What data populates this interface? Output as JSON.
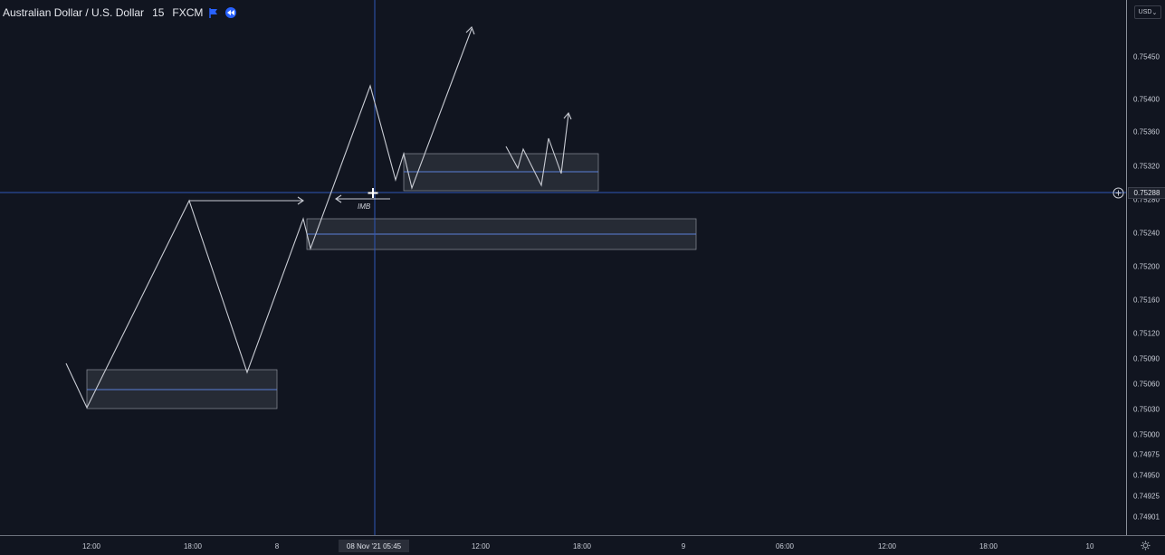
{
  "symbol": {
    "name": "Australian Dollar / U.S. Dollar",
    "timeframe": "15",
    "source": "FXCM",
    "flag_icon": "flag-icon",
    "rewind_icon": "rewind-icon"
  },
  "price_axis": {
    "currency": "USD",
    "labels": [
      "0.75450",
      "0.75400",
      "0.75360",
      "0.75320",
      "0.75280",
      "0.75240",
      "0.75200",
      "0.75160",
      "0.75120",
      "0.75090",
      "0.75060",
      "0.75030",
      "0.75000",
      "0.74975",
      "0.74950",
      "0.74925",
      "0.74901"
    ],
    "current_price": "0.75288"
  },
  "time_axis": {
    "labels": [
      "12:00",
      "18:00",
      "8",
      "12:00",
      "18:00",
      "9",
      "06:00",
      "12:00",
      "18:00",
      "10"
    ],
    "crosshair_label": "08 Nov '21   05:45"
  },
  "annotations": {
    "imbalance_label": "IMB"
  },
  "colors": {
    "background": "#111520",
    "crosshair": "#2f57b8",
    "drawing": "#c9ccd4",
    "zone_fill": "#2a2f3a",
    "zone_border": "#8b909b",
    "zone_midline": "#5b7fd6",
    "accent": "#2962ff"
  },
  "icons": {
    "plus_circle": "plus-circle-icon",
    "settings": "settings-icon"
  }
}
